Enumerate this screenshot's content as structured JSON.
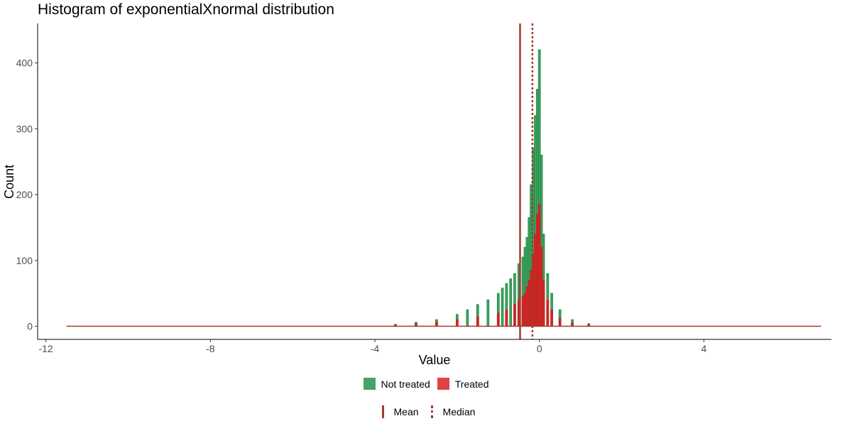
{
  "chart_data": {
    "type": "bar",
    "title": "Histogram of exponentialXnormal distribution",
    "xlabel": "Value",
    "ylabel": "Count",
    "xlim": [
      -12.2,
      7.1
    ],
    "ylim": [
      -20,
      460
    ],
    "x_ticks": [
      -12,
      -8,
      -4,
      0,
      4
    ],
    "y_ticks": [
      0,
      100,
      200,
      300,
      400
    ],
    "bin_width": 0.05,
    "grid": false,
    "legend_position": "bottom",
    "series": [
      {
        "name": "Not treated",
        "color": "#1f8e45",
        "x": [
          -3.5,
          -3.0,
          -2.5,
          -2.0,
          -1.75,
          -1.5,
          -1.25,
          -1.0,
          -0.9,
          -0.8,
          -0.7,
          -0.6,
          -0.5,
          -0.4,
          -0.35,
          -0.3,
          -0.25,
          -0.2,
          -0.15,
          -0.1,
          -0.05,
          0.0,
          0.05,
          0.1,
          0.2,
          0.3,
          0.5,
          0.8,
          1.2
        ],
        "values": [
          3,
          6,
          10,
          18,
          25,
          33,
          40,
          50,
          58,
          65,
          72,
          80,
          95,
          105,
          120,
          135,
          165,
          215,
          270,
          320,
          360,
          420,
          260,
          140,
          80,
          50,
          25,
          10,
          4
        ]
      },
      {
        "name": "Treated",
        "color": "#d71a1f",
        "x": [
          -3.5,
          -3.0,
          -2.5,
          -2.0,
          -1.5,
          -1.0,
          -0.8,
          -0.6,
          -0.5,
          -0.4,
          -0.35,
          -0.3,
          -0.25,
          -0.2,
          -0.15,
          -0.1,
          -0.05,
          0.0,
          0.05,
          0.1,
          0.2,
          0.3,
          0.5,
          0.8,
          1.2
        ],
        "values": [
          2,
          4,
          6,
          10,
          14,
          20,
          25,
          33,
          40,
          45,
          50,
          60,
          70,
          85,
          110,
          140,
          170,
          185,
          120,
          70,
          40,
          25,
          12,
          5,
          2
        ]
      }
    ],
    "reference_lines": [
      {
        "name": "Mean",
        "style": "solid",
        "x": -0.47,
        "color": "#a23a2a"
      },
      {
        "name": "Median",
        "style": "dotted",
        "x": -0.17,
        "color": "#a23a2a"
      }
    ]
  },
  "legend": {
    "fill": [
      {
        "label": "Not treated",
        "color": "#1f8e45"
      },
      {
        "label": "Treated",
        "color": "#d71a1f"
      }
    ],
    "lines": [
      {
        "label": "Mean",
        "style": "solid"
      },
      {
        "label": "Median",
        "style": "dotted"
      }
    ]
  }
}
